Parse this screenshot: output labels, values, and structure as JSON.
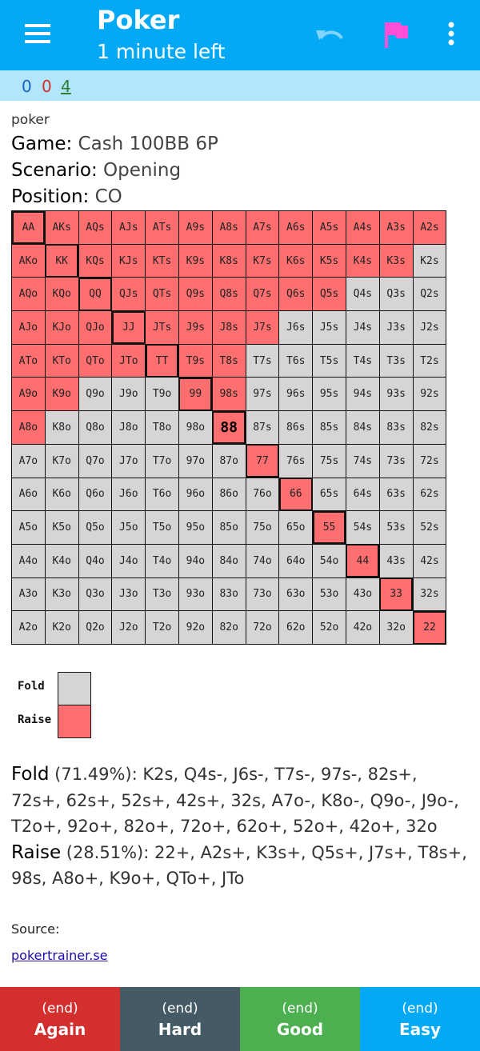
{
  "appbar": {
    "title": "Poker",
    "subtitle": "1 minute left",
    "icons": [
      "menu-icon",
      "undo-icon",
      "flag-icon",
      "overflow-icon"
    ],
    "flag_color": "#ff4fd8",
    "undo_color": "#81d4fa"
  },
  "counts": {
    "new": "0",
    "learn": "0",
    "review": "4"
  },
  "card": {
    "deck": "poker",
    "game_label": "Game:",
    "game_value": "Cash 100BB 6P",
    "scenario_label": "Scenario:",
    "scenario_value": "Opening",
    "position_label": "Position:",
    "position_value": "CO"
  },
  "grid": {
    "ranks": [
      "A",
      "K",
      "Q",
      "J",
      "T",
      "9",
      "8",
      "7",
      "6",
      "5",
      "4",
      "3",
      "2"
    ],
    "raise_rows": [
      [
        "AA",
        "AKs",
        "AQs",
        "AJs",
        "ATs",
        "A9s",
        "A8s",
        "A7s",
        "A6s",
        "A5s",
        "A4s",
        "A3s",
        "A2s"
      ],
      [
        "AKo",
        "KK",
        "KQs",
        "KJs",
        "KTs",
        "K9s",
        "K8s",
        "K7s",
        "K6s",
        "K5s",
        "K4s",
        "K3s"
      ],
      [
        "AQo",
        "KQo",
        "QQ",
        "QJs",
        "QTs",
        "Q9s",
        "Q8s",
        "Q7s",
        "Q6s",
        "Q5s"
      ],
      [
        "AJo",
        "KJo",
        "QJo",
        "JJ",
        "JTs",
        "J9s",
        "J8s",
        "J7s"
      ],
      [
        "ATo",
        "KTo",
        "QTo",
        "JTo",
        "TT",
        "T9s",
        "T8s"
      ],
      [
        "A9o",
        "K9o",
        "99",
        "98s"
      ],
      [
        "A8o",
        "88"
      ],
      [
        "77"
      ],
      [
        "66"
      ],
      [
        "55"
      ],
      [
        "44"
      ],
      [
        "33"
      ],
      [
        "22"
      ]
    ],
    "current_hand": "88",
    "colors": {
      "raise": "#ff6f6f",
      "fold": "#d6d4d4"
    }
  },
  "legend": [
    {
      "label": "Fold",
      "color": "#d6d4d4"
    },
    {
      "label": "Raise",
      "color": "#ff6f6f"
    }
  ],
  "explanation": {
    "fold_label": "Fold",
    "fold_text": " (71.49%): K2s, Q4s-, J6s-, T7s-, 97s-, 82s+, 72s+, 62s+, 52s+, 42s+, 32s, A7o-, K8o-, Q9o-, J9o-, T2o+, 92o+, 82o+, 72o+, 62o+, 52o+, 42o+, 32o",
    "raise_label": "Raise",
    "raise_text": " (28.51%): 22+, A2s+, K3s+, Q5s+, J7s+, T8s+, 98s, A8o+, K9o+, QTo+, JTo"
  },
  "source": {
    "label": "Source:",
    "link": "pokertrainer.se"
  },
  "answers": [
    {
      "time": "(end)",
      "label": "Again",
      "color": "#d32f2f"
    },
    {
      "time": "(end)",
      "label": "Hard",
      "color": "#455a64"
    },
    {
      "time": "(end)",
      "label": "Good",
      "color": "#4caf50"
    },
    {
      "time": "(end)",
      "label": "Easy",
      "color": "#03a9f4"
    }
  ]
}
